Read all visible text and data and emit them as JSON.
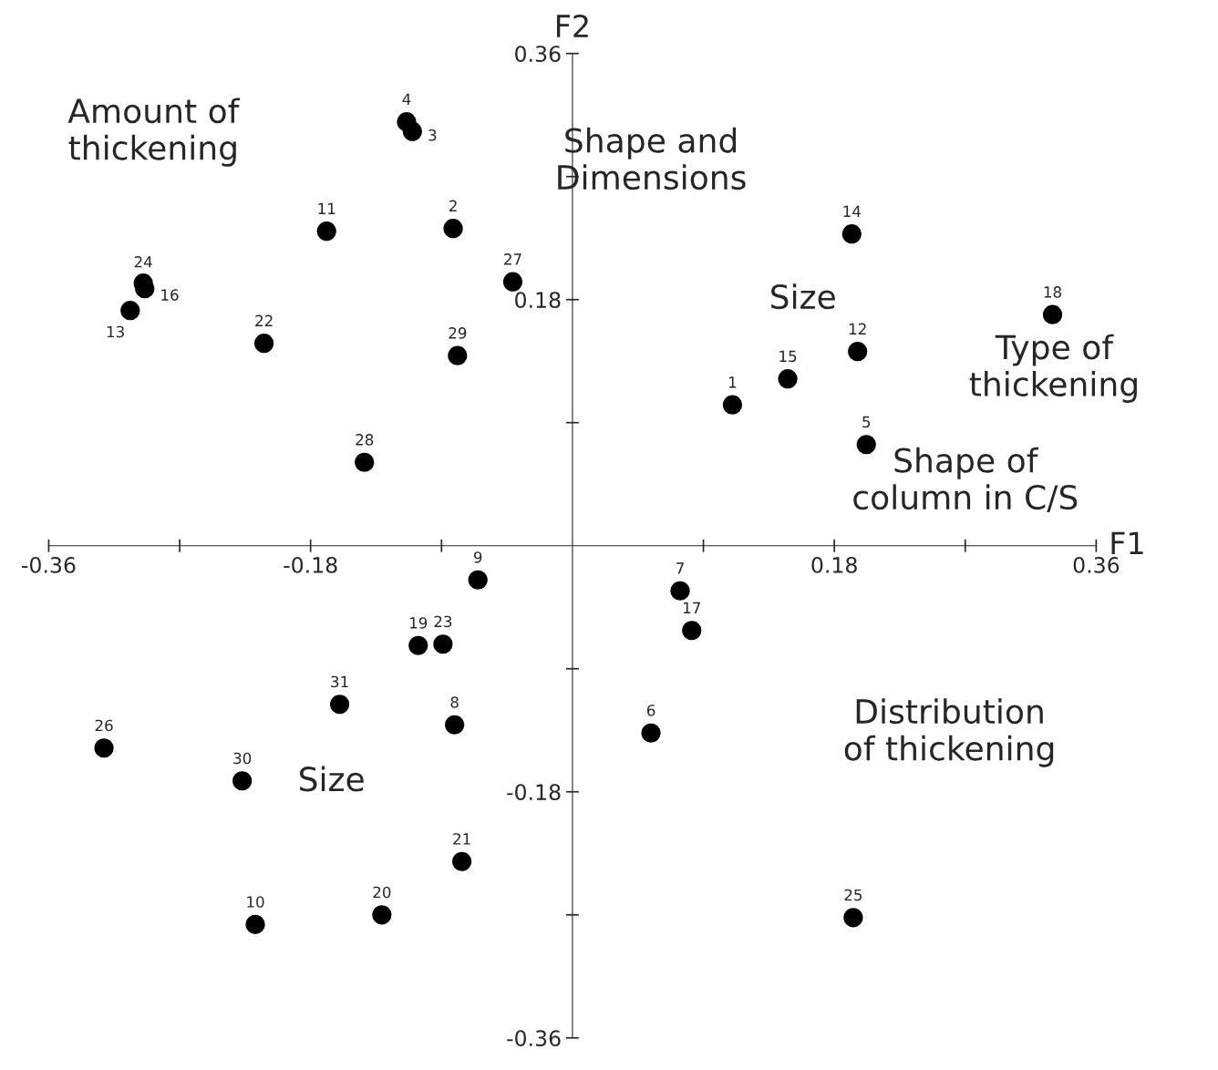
{
  "chart_data": {
    "type": "scatter",
    "xlabel": "F1",
    "ylabel": "F2",
    "xlim": [
      -0.36,
      0.36
    ],
    "ylim": [
      -0.36,
      0.36
    ],
    "xticks": [
      -0.36,
      {
        "value": -0.27,
        "label": null
      },
      -0.18,
      {
        "value": -0.09,
        "label": null
      },
      {
        "value": 0.09,
        "label": null
      },
      0.18,
      {
        "value": 0.27,
        "label": null
      },
      0.36
    ],
    "yticks": [
      -0.36,
      {
        "value": -0.27,
        "label": null
      },
      -0.18,
      {
        "value": -0.09,
        "label": null
      },
      {
        "value": 0.09,
        "label": null
      },
      0.18,
      {
        "value": 0.27,
        "label": null
      },
      0.36
    ],
    "grid": false,
    "marker": "circle",
    "series": [
      {
        "color": "#000000",
        "x": [
          0.11,
          -0.082,
          -0.11,
          -0.114,
          0.202,
          0.054,
          0.074,
          -0.081,
          -0.065,
          -0.218,
          -0.169,
          0.196,
          -0.304,
          0.192,
          0.148,
          -0.294,
          0.082,
          0.33,
          -0.106,
          -0.131,
          -0.076,
          -0.212,
          -0.089,
          -0.295,
          0.193,
          -0.322,
          -0.041,
          -0.143,
          -0.079,
          -0.227,
          -0.16
        ],
        "values": [
          0.103,
          0.232,
          0.303,
          0.31,
          0.074,
          -0.137,
          -0.033,
          -0.131,
          -0.025,
          -0.277,
          0.23,
          0.142,
          0.172,
          0.228,
          0.122,
          0.188,
          -0.062,
          0.169,
          -0.073,
          -0.27,
          -0.231,
          0.148,
          -0.072,
          0.192,
          -0.272,
          -0.148,
          0.193,
          0.061,
          0.139,
          -0.172,
          -0.116
        ]
      }
    ],
    "annotations": [
      {
        "text": "1",
        "x": 0.11,
        "y": 0.103
      },
      {
        "text": "2",
        "x": -0.082,
        "y": 0.232
      },
      {
        "text": "3",
        "x": -0.11,
        "y": 0.303
      },
      {
        "text": "4",
        "x": -0.114,
        "y": 0.31
      },
      {
        "text": "5",
        "x": 0.202,
        "y": 0.074
      },
      {
        "text": "6",
        "x": 0.054,
        "y": -0.137
      },
      {
        "text": "7",
        "x": 0.074,
        "y": -0.033
      },
      {
        "text": "8",
        "x": -0.081,
        "y": -0.131
      },
      {
        "text": "9",
        "x": -0.065,
        "y": -0.025
      },
      {
        "text": "10",
        "x": -0.218,
        "y": -0.277
      },
      {
        "text": "11",
        "x": -0.169,
        "y": 0.23
      },
      {
        "text": "12",
        "x": 0.196,
        "y": 0.142
      },
      {
        "text": "13",
        "x": -0.304,
        "y": 0.172
      },
      {
        "text": "14",
        "x": 0.192,
        "y": 0.228
      },
      {
        "text": "15",
        "x": 0.148,
        "y": 0.122
      },
      {
        "text": "16",
        "x": -0.294,
        "y": 0.188
      },
      {
        "text": "17",
        "x": 0.082,
        "y": -0.062
      },
      {
        "text": "18",
        "x": 0.33,
        "y": 0.169
      },
      {
        "text": "19",
        "x": -0.106,
        "y": -0.073
      },
      {
        "text": "20",
        "x": -0.131,
        "y": -0.27
      },
      {
        "text": "21",
        "x": -0.076,
        "y": -0.231
      },
      {
        "text": "22",
        "x": -0.212,
        "y": 0.148
      },
      {
        "text": "23",
        "x": -0.089,
        "y": -0.072
      },
      {
        "text": "24",
        "x": -0.295,
        "y": 0.192
      },
      {
        "text": "25",
        "x": 0.193,
        "y": -0.272
      },
      {
        "text": "26",
        "x": -0.322,
        "y": -0.148
      },
      {
        "text": "27",
        "x": -0.041,
        "y": 0.193
      },
      {
        "text": "28",
        "x": -0.143,
        "y": 0.061
      },
      {
        "text": "29",
        "x": -0.079,
        "y": 0.139
      },
      {
        "text": "30",
        "x": -0.227,
        "y": -0.172
      },
      {
        "text": "31",
        "x": -0.16,
        "y": -0.116
      },
      "Amount of\nthickening",
      "Shape and\nDimensions",
      "Size",
      "Type of\nthickening",
      "Shape of\ncolumn in C/S",
      "Size",
      "Distribution\nof thickening"
    ]
  }
}
